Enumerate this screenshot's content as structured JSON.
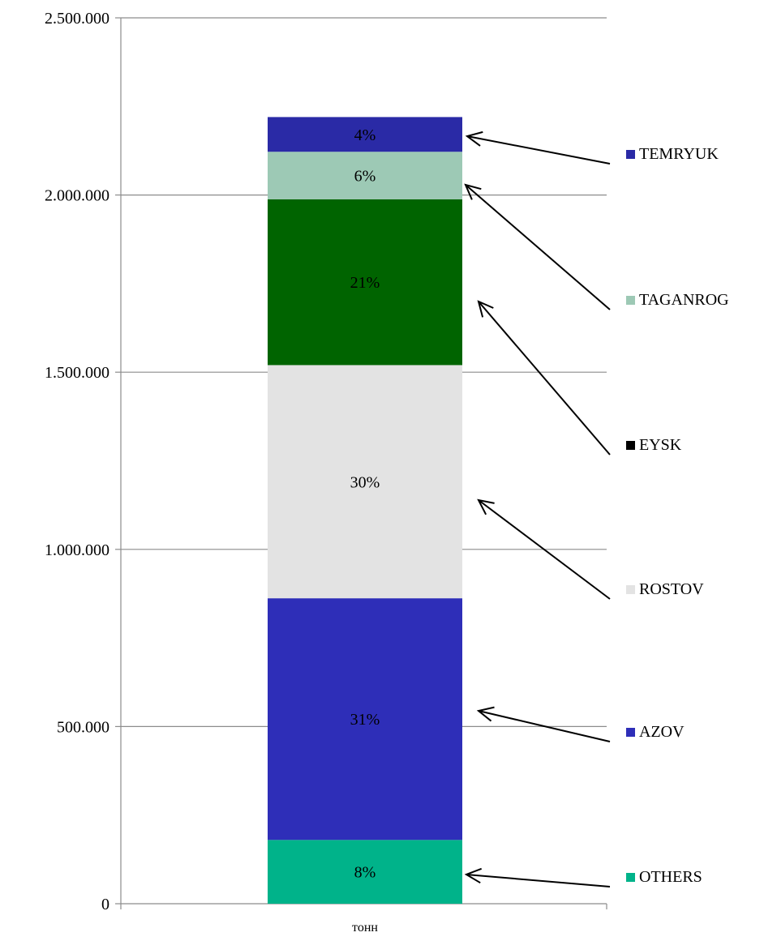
{
  "chart_data": {
    "type": "bar",
    "stacked": true,
    "categories": [
      "тонн"
    ],
    "ylim": [
      0,
      2500000
    ],
    "y_ticks": [
      {
        "value": 0,
        "label": "0"
      },
      {
        "value": 500000,
        "label": "500.000"
      },
      {
        "value": 1000000,
        "label": "1.000.000"
      },
      {
        "value": 1500000,
        "label": "1.500.000"
      },
      {
        "value": 2000000,
        "label": "2.000.000"
      },
      {
        "value": 2500000,
        "label": "2.500.000"
      }
    ],
    "grid": true,
    "legend_position": "right",
    "series": [
      {
        "name": "OTHERS",
        "values": [
          180000
        ],
        "label": "8%",
        "color": "#00b38a"
      },
      {
        "name": "AZOV",
        "values": [
          682000
        ],
        "label": "31%",
        "color": "#2e2eb8"
      },
      {
        "name": "ROSTOV",
        "values": [
          658000
        ],
        "label": "30%",
        "color": "#e3e3e3"
      },
      {
        "name": "EYSK",
        "values": [
          468000
        ],
        "label": "21%",
        "color": "#006400"
      },
      {
        "name": "TAGANROG",
        "values": [
          134000
        ],
        "label": "6%",
        "color": "#9dc9b5"
      },
      {
        "name": "TEMRYUK",
        "values": [
          98000
        ],
        "label": "4%",
        "color": "#2a2aa6"
      }
    ],
    "legend_marker_colors": {
      "OTHERS": "#00b38a",
      "AZOV": "#2e2eb8",
      "ROSTOV": "#e3e3e3",
      "EYSK": "#000000",
      "TAGANROG": "#9dc9b5",
      "TEMRYUK": "#2a2aa6"
    }
  }
}
